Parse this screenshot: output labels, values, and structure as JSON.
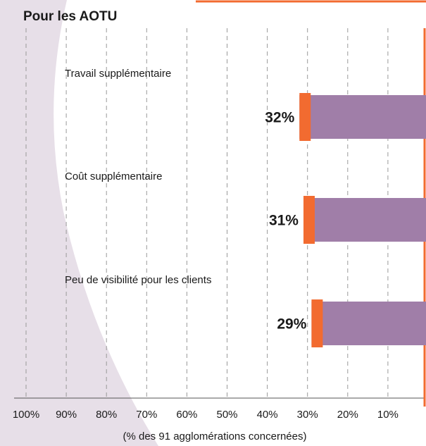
{
  "chart_data": {
    "type": "bar",
    "orientation": "horizontal",
    "title": "Pour les AOTU",
    "xlabel": "(% des 91 agglomérations concernées)",
    "categories": [
      "Travail supplémentaire",
      "Coût supplémentaire",
      "Peu de visibilité pour les clients"
    ],
    "values": [
      32,
      31,
      29
    ],
    "value_labels": [
      "32%",
      "31%",
      "29%"
    ],
    "color": "#a07ea8",
    "cap_color": "#f26b30",
    "xlim": [
      0,
      100
    ],
    "x_reversed": true,
    "xticks": [
      {
        "value": 100,
        "label": "100%"
      },
      {
        "value": 90,
        "label": "90%"
      },
      {
        "value": 80,
        "label": "80%"
      },
      {
        "value": 70,
        "label": "70%"
      },
      {
        "value": 60,
        "label": "60%"
      },
      {
        "value": 50,
        "label": "50%"
      },
      {
        "value": 40,
        "label": "40%"
      },
      {
        "value": 30,
        "label": "30%"
      },
      {
        "value": 20,
        "label": "20%"
      },
      {
        "value": 10,
        "label": "10%"
      }
    ],
    "grid": true
  }
}
